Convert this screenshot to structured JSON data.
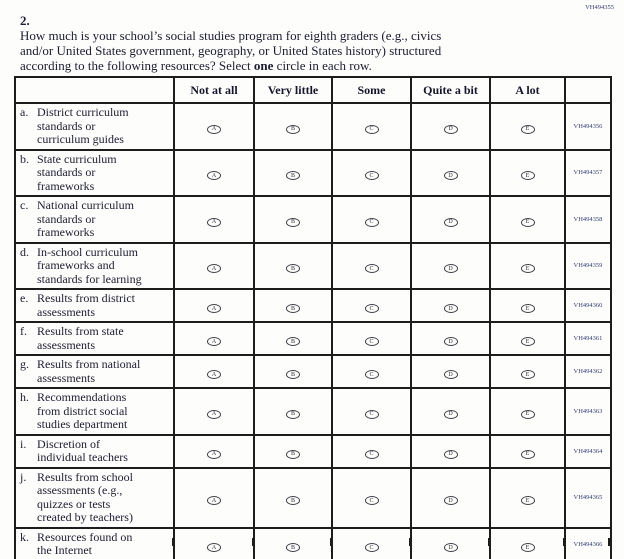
{
  "page": {
    "code_top_right": "VH494355"
  },
  "question": {
    "number": "2.",
    "line1": "How much is your school’s social studies program for eighth graders (e.g., civics",
    "line2": "and/or United States government, geography, or United States history) structured",
    "line3_pre": "according to the following resources? Select ",
    "line3_bold": "one",
    "line3_post": " circle in each row."
  },
  "table": {
    "column_headers": [
      "Not at all",
      "Very little",
      "Some",
      "Quite a bit",
      "A lot"
    ],
    "bubble_letters": [
      "A",
      "B",
      "C",
      "D",
      "E"
    ],
    "rows": [
      {
        "letter": "a.",
        "label": "District curriculum\nstandards or\ncurriculum guides",
        "code": "VH494356"
      },
      {
        "letter": "b.",
        "label": "State curriculum\nstandards or\nframeworks",
        "code": "VH494357"
      },
      {
        "letter": "c.",
        "label": "National curriculum\nstandards or\nframeworks",
        "code": "VH494358"
      },
      {
        "letter": "d.",
        "label": "In-school curriculum\nframeworks and\nstandards for learning",
        "code": "VH494359"
      },
      {
        "letter": "e.",
        "label": "Results from district\nassessments",
        "code": "VH494360"
      },
      {
        "letter": "f.",
        "label": "Results from state\nassessments",
        "code": "VH494361"
      },
      {
        "letter": "g.",
        "label": "Results from national\nassessments",
        "code": "VH494362"
      },
      {
        "letter": "h.",
        "label": "Recommendations\nfrom district social\nstudies department",
        "code": "VH494363"
      },
      {
        "letter": "i.",
        "label": "Discretion of\nindividual teachers",
        "code": "VH494364"
      },
      {
        "letter": "j.",
        "label": "Results from school\nassessments (e.g.,\nquizzes or tests\ncreated by teachers)",
        "code": "VH494365"
      },
      {
        "letter": "k.",
        "label": "Resources found on\nthe Internet",
        "code": "VH494366"
      }
    ]
  },
  "colors": {
    "code_text": "#2e3a6e",
    "body_text": "#1c1c32",
    "table_border": "#1d1d1d"
  }
}
